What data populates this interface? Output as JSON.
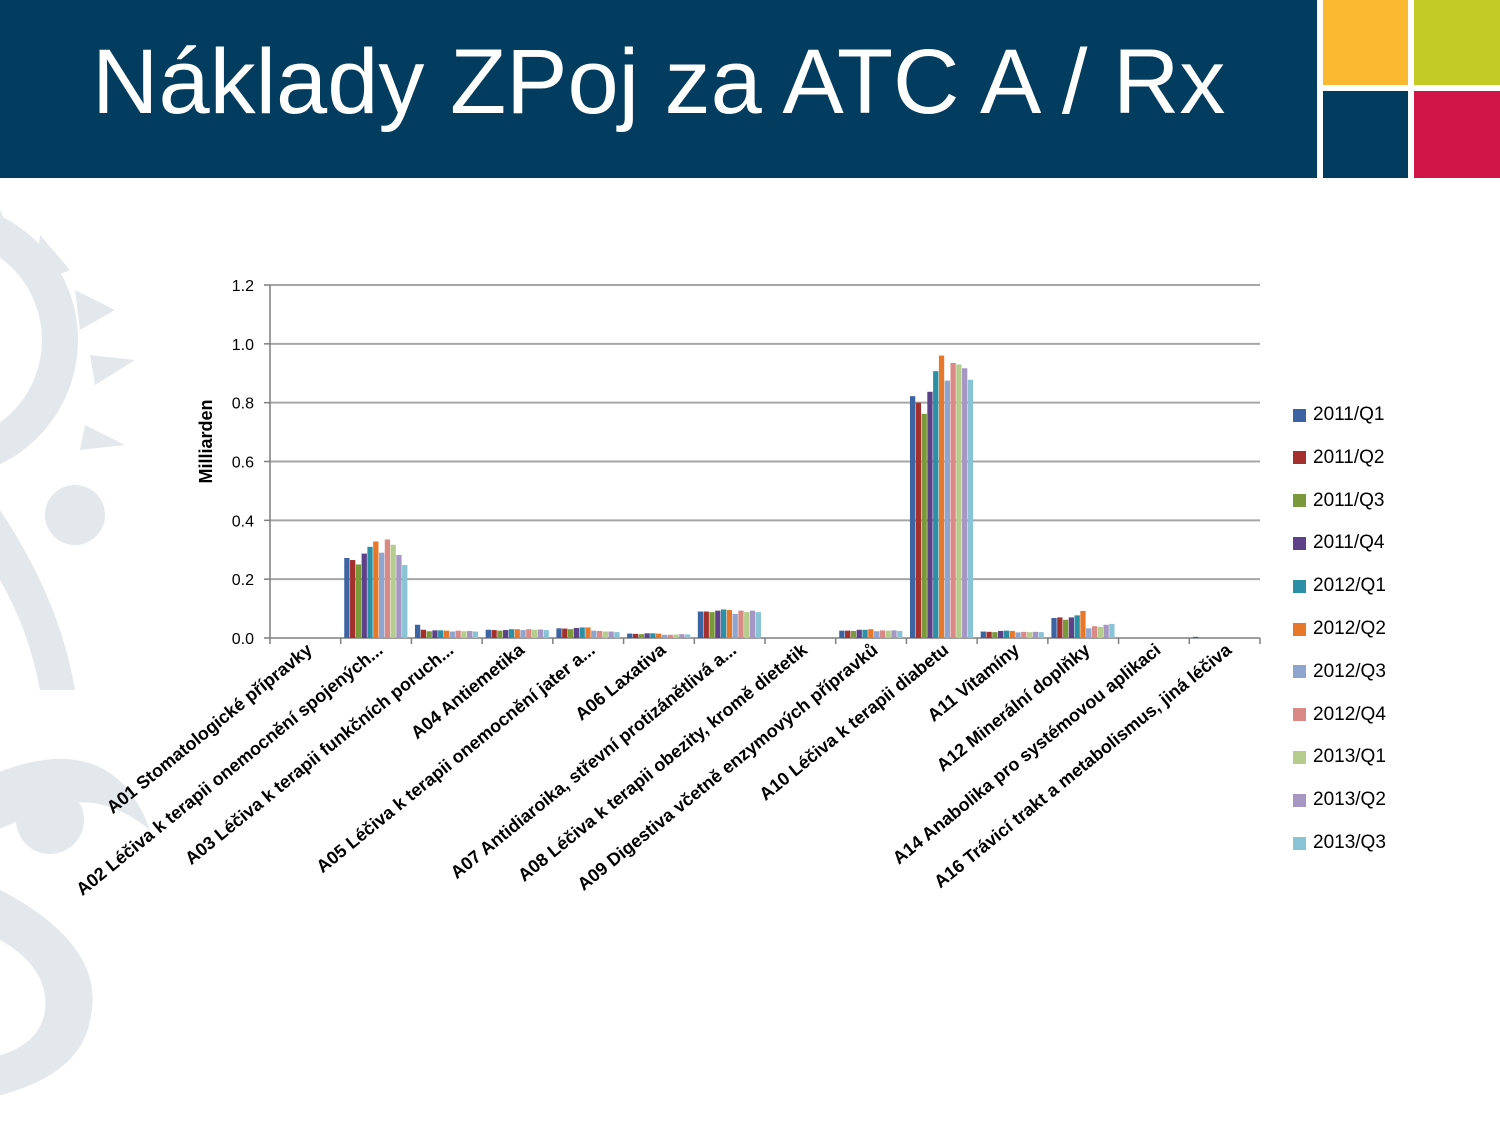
{
  "slide": {
    "title": "Náklady ZPoj za ATC A / Rx",
    "header_color": "#023c5f",
    "tile_colors": [
      "#fbb932",
      "#c3cc27",
      "#023c5f",
      "#d21548"
    ]
  },
  "chart_data": {
    "type": "bar",
    "title": "",
    "xlabel": "",
    "ylabel": "Milliarden",
    "ylim": [
      0,
      1.2
    ],
    "yticks": [
      "0.0",
      "0.2",
      "0.4",
      "0.6",
      "0.8",
      "1.0",
      "1.2"
    ],
    "grid": true,
    "legend_position": "right",
    "categories": [
      "A01 Stomatologické přípravky",
      "A02 Léčiva k terapii onemocnění spojených...",
      "A03 Léčiva k terapii funkčních poruch...",
      "A04 Antiemetika",
      "A05 Léčiva k terapii onemocnění jater a...",
      "A06 Laxativa",
      "A07 Antidiaroika, střevní protizánětlivá a...",
      "A08 Léčiva k terapii obezity, kromě dietetik",
      "A09 Digestiva včetně enzymových přípravků",
      "A10 Léčiva k terapii diabetu",
      "A11 Vitamíny",
      "A12 Minerální doplňky",
      "A14 Anabolika pro systémovou aplikaci",
      "A16 Trávicí trakt a metabolismus, jiná léčiva"
    ],
    "series": [
      {
        "name": "2011/Q1",
        "color": "#3c64a2",
        "values": [
          0,
          0.272,
          0.045,
          0.028,
          0.033,
          0.015,
          0.09,
          0,
          0.025,
          0.822,
          0.022,
          0.068,
          0,
          0.004
        ]
      },
      {
        "name": "2011/Q2",
        "color": "#a4302e",
        "values": [
          0,
          0.265,
          0.028,
          0.027,
          0.032,
          0.014,
          0.09,
          0,
          0.025,
          0.8,
          0.021,
          0.07,
          0,
          0
        ]
      },
      {
        "name": "2011/Q3",
        "color": "#7a9a3a",
        "values": [
          0,
          0.25,
          0.023,
          0.025,
          0.03,
          0.013,
          0.088,
          0,
          0.024,
          0.762,
          0.02,
          0.062,
          0,
          0
        ]
      },
      {
        "name": "2011/Q4",
        "color": "#5e4289",
        "values": [
          0,
          0.287,
          0.026,
          0.027,
          0.034,
          0.016,
          0.093,
          0,
          0.028,
          0.837,
          0.024,
          0.07,
          0,
          0
        ]
      },
      {
        "name": "2012/Q1",
        "color": "#2b8fa6",
        "values": [
          0,
          0.31,
          0.026,
          0.03,
          0.036,
          0.016,
          0.097,
          0,
          0.028,
          0.907,
          0.025,
          0.077,
          0,
          0
        ]
      },
      {
        "name": "2012/Q2",
        "color": "#e7782a",
        "values": [
          0,
          0.328,
          0.025,
          0.03,
          0.036,
          0.015,
          0.095,
          0,
          0.03,
          0.96,
          0.024,
          0.092,
          0,
          0
        ]
      },
      {
        "name": "2012/Q3",
        "color": "#8ea5d0",
        "values": [
          0,
          0.29,
          0.022,
          0.027,
          0.025,
          0.011,
          0.082,
          0,
          0.023,
          0.875,
          0.019,
          0.033,
          0,
          0
        ]
      },
      {
        "name": "2012/Q4",
        "color": "#d98a87",
        "values": [
          0,
          0.335,
          0.025,
          0.03,
          0.024,
          0.011,
          0.093,
          0,
          0.026,
          0.935,
          0.021,
          0.04,
          0,
          0
        ]
      },
      {
        "name": "2013/Q1",
        "color": "#b6cc8c",
        "values": [
          0,
          0.317,
          0.023,
          0.028,
          0.022,
          0.012,
          0.088,
          0,
          0.025,
          0.93,
          0.02,
          0.038,
          0,
          0
        ]
      },
      {
        "name": "2013/Q2",
        "color": "#a596c3",
        "values": [
          0,
          0.282,
          0.024,
          0.029,
          0.022,
          0.013,
          0.093,
          0,
          0.026,
          0.917,
          0.021,
          0.045,
          0,
          0
        ]
      },
      {
        "name": "2013/Q3",
        "color": "#88c3d6",
        "values": [
          0,
          0.248,
          0.022,
          0.027,
          0.02,
          0.012,
          0.088,
          0,
          0.024,
          0.878,
          0.02,
          0.048,
          0,
          0
        ]
      }
    ]
  }
}
